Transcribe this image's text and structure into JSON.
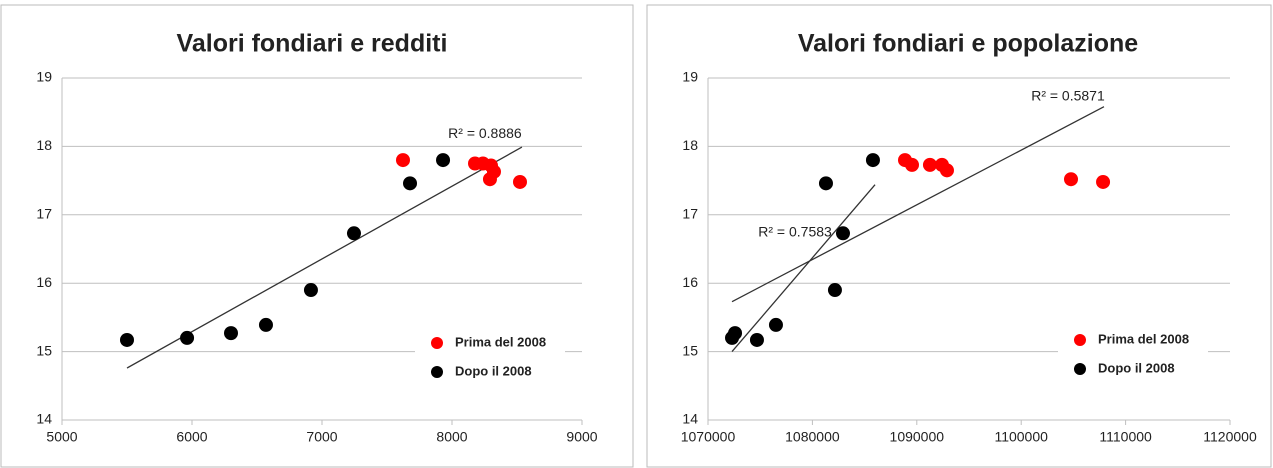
{
  "chart_data": [
    {
      "type": "scatter",
      "title": "Valori fondiari e redditi",
      "xlim": [
        5000,
        9000
      ],
      "xticks": [
        5000,
        6000,
        7000,
        8000,
        9000
      ],
      "ylim": [
        14,
        19
      ],
      "yticks": [
        14,
        15,
        16,
        17,
        18,
        19
      ],
      "grid": true,
      "legend": "lower right",
      "series": [
        {
          "name": "Prima del 2008",
          "color": "#ff0000",
          "x": [
            7623,
            8177,
            8238,
            8300,
            8323,
            8292,
            8523
          ],
          "values": [
            17.8,
            17.75,
            17.75,
            17.72,
            17.63,
            17.52,
            17.48
          ]
        },
        {
          "name": "Dopo il 2008",
          "color": "#000000",
          "x": [
            5500,
            5962,
            6300,
            6569,
            6915,
            7246,
            7677,
            7931
          ],
          "values": [
            15.17,
            15.2,
            15.27,
            15.39,
            15.9,
            16.73,
            17.46,
            17.8
          ]
        }
      ],
      "trendlines": [
        {
          "label": "R² = 0.8886",
          "x": [
            5500,
            8538
          ],
          "y": [
            14.76,
            17.99
          ]
        }
      ]
    },
    {
      "type": "scatter",
      "title": "Valori fondiari e popolazione",
      "xlim": [
        1070000,
        1120000
      ],
      "xticks": [
        1070000,
        1080000,
        1090000,
        1100000,
        1110000,
        1120000
      ],
      "ylim": [
        14,
        19
      ],
      "yticks": [
        14,
        15,
        16,
        17,
        18,
        19
      ],
      "grid": true,
      "legend": "lower right",
      "series": [
        {
          "name": "Prima del 2008",
          "color": "#ff0000",
          "x": [
            1088870,
            1089540,
            1091260,
            1092410,
            1092890,
            1104770,
            1107840
          ],
          "values": [
            17.8,
            17.73,
            17.73,
            17.73,
            17.65,
            17.52,
            17.48
          ]
        },
        {
          "name": "Dopo il 2008",
          "color": "#000000",
          "x": [
            1072300,
            1072590,
            1074690,
            1076510,
            1081300,
            1082160,
            1082930,
            1085800
          ],
          "values": [
            15.2,
            15.27,
            15.17,
            15.39,
            17.46,
            15.9,
            16.73,
            17.8
          ]
        }
      ],
      "trendlines": [
        {
          "label": "R² = 0.5871",
          "x": [
            1072300,
            1107930
          ],
          "y": [
            15.73,
            18.58
          ]
        },
        {
          "label": "R² = 0.7583",
          "x": [
            1072300,
            1086000
          ],
          "y": [
            15.0,
            17.44
          ]
        }
      ]
    }
  ]
}
